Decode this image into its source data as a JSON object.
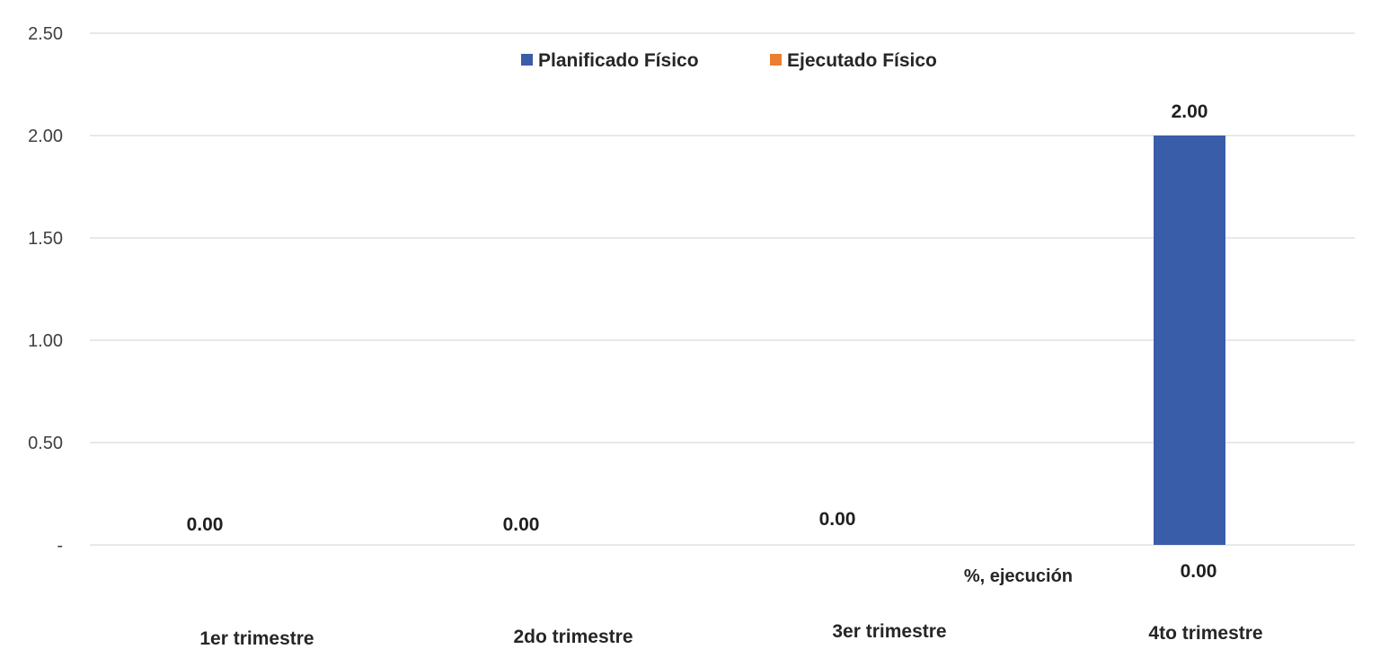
{
  "chart_data": {
    "type": "bar",
    "categories": [
      "1er trimestre",
      "2do trimestre",
      "3er trimestre",
      "4to trimestre"
    ],
    "series": [
      {
        "name": "Planificado Físico",
        "color": "#3a5da9",
        "values": [
          0,
          0,
          0,
          2
        ]
      },
      {
        "name": "Ejecutado Físico",
        "color": "#ed7d31",
        "values": [
          0,
          0,
          0,
          0
        ]
      }
    ],
    "data_labels": [
      "0.00",
      "0.00",
      "0.00",
      "2.00"
    ],
    "y_ticks": [
      {
        "value": 0,
        "label": "-"
      },
      {
        "value": 0.5,
        "label": "0.50"
      },
      {
        "value": 1,
        "label": "1.00"
      },
      {
        "value": 1.5,
        "label": "1.50"
      },
      {
        "value": 2,
        "label": "2.00"
      },
      {
        "value": 2.5,
        "label": "2.50"
      }
    ],
    "ylim": [
      0,
      2.5
    ],
    "grid": true,
    "legend_position": "top-center",
    "annotation": {
      "label": "%, ejecución",
      "value": "0.00"
    },
    "title": "",
    "xlabel": "",
    "ylabel": ""
  }
}
